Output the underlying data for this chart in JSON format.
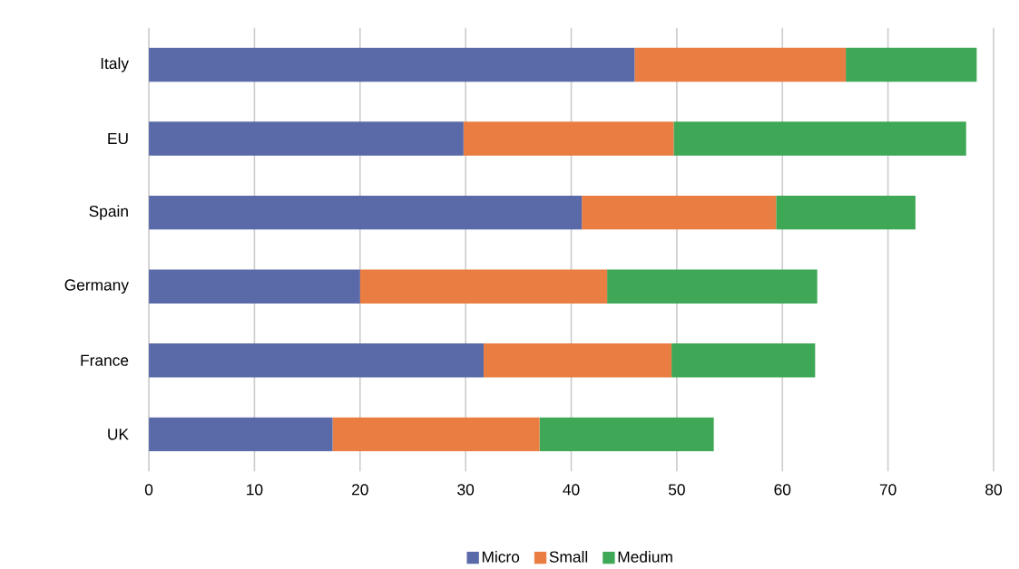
{
  "chart_data": {
    "type": "bar",
    "orientation": "horizontal",
    "stacked": true,
    "categories": [
      "Italy",
      "EU",
      "Spain",
      "Germany",
      "France",
      "UK"
    ],
    "series": [
      {
        "name": "Micro",
        "color": "#5a6aa8",
        "values": [
          46.0,
          29.8,
          41.0,
          20.0,
          31.7,
          17.4
        ]
      },
      {
        "name": "Small",
        "color": "#ea7d41",
        "values": [
          20.0,
          19.9,
          18.4,
          23.4,
          17.8,
          19.6
        ]
      },
      {
        "name": "Medium",
        "color": "#3fa856",
        "values": [
          12.4,
          27.7,
          13.2,
          19.9,
          13.6,
          16.5
        ]
      }
    ],
    "xlim": [
      0,
      80
    ],
    "xticks": [
      0,
      10,
      20,
      30,
      40,
      50,
      60,
      70,
      80
    ],
    "grid": "x",
    "legend": "bottom"
  }
}
